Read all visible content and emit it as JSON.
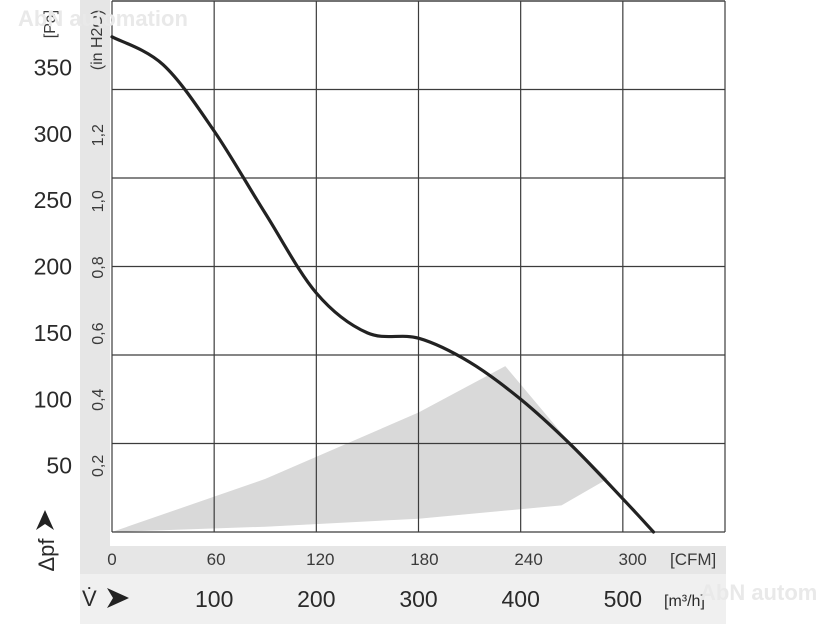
{
  "chart_data": {
    "type": "line",
    "y_left": {
      "unit": "[Pa]",
      "ticks": [
        "50",
        "100",
        "150",
        "200",
        "250",
        "300",
        "350"
      ],
      "symbol": "Δpf"
    },
    "y_inner": {
      "unit": "(in H2O)",
      "ticks": [
        "0,2",
        "0,4",
        "0,6",
        "0,8",
        "1,0",
        "1,2"
      ]
    },
    "x_cfm": {
      "unit": "[CFM]",
      "ticks": [
        "0",
        "60",
        "120",
        "180",
        "240",
        "300"
      ]
    },
    "x_m3h": {
      "unit": "[m³/h]",
      "ticks": [
        "100",
        "200",
        "300",
        "400",
        "500"
      ],
      "symbol": "V̇"
    },
    "xlim_m3h": [
      0,
      600
    ],
    "ylim_pa": [
      0,
      400
    ],
    "grid": true,
    "series": [
      {
        "x": [
          0,
          50,
          100,
          150,
          200,
          250,
          300,
          350,
          400,
          450,
          500,
          530
        ],
        "y": [
          373,
          352,
          302,
          240,
          180,
          150,
          146,
          128,
          100,
          65,
          25,
          0
        ]
      }
    ],
    "operating_region": {
      "x": [
        0,
        150,
        300,
        385,
        445,
        485,
        440,
        300,
        150,
        0
      ],
      "y": [
        0,
        40,
        90,
        125,
        70,
        40,
        20,
        10,
        4,
        0
      ]
    },
    "watermark": "AbN automation"
  }
}
